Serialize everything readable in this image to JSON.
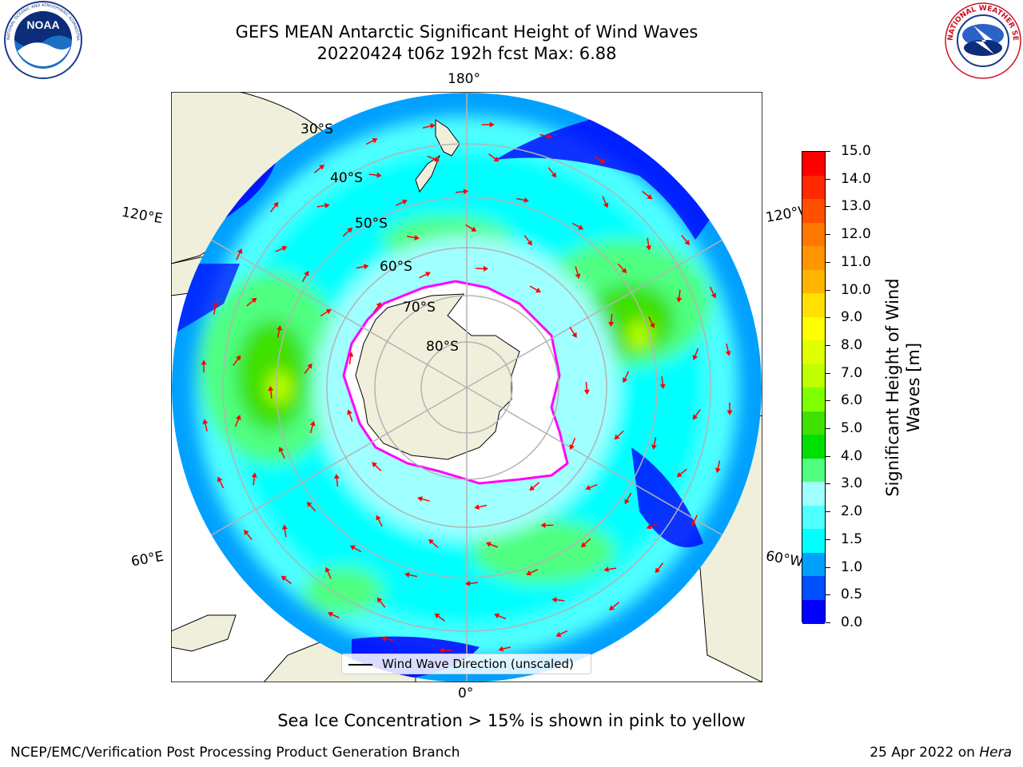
{
  "header": {
    "title_line1": "GEFS MEAN Antarctic Significant Height of Wind Waves",
    "title_line2": "20220424 t06z 192h fcst   Max: 6.88"
  },
  "logos": {
    "noaa": {
      "text": "NOAA",
      "ring_text": "NATIONAL OCEANIC AND ATMOSPHERIC ADMINISTRATION · U.S. DEPARTMENT OF COMMERCE"
    },
    "nws": {
      "ring_text": "NATIONAL WEATHER SERVICE"
    }
  },
  "map": {
    "projection": "south polar stereographic",
    "longitude_labels": [
      "180°",
      "120°E",
      "120°W",
      "60°E",
      "60°W",
      "0°"
    ],
    "latitude_labels": [
      "30°S",
      "40°S",
      "50°S",
      "60°S",
      "70°S",
      "80°S"
    ],
    "legend_label": "Wind Wave Direction (unscaled)",
    "colors": {
      "land": "#efefdb",
      "ice_shelf": "#ffffff",
      "sea_ice_edge": [
        "#ff00ff",
        "#ffa0c8",
        "#ffc830"
      ],
      "arrow": "#ff0000",
      "graticule": "#b4b4b4"
    }
  },
  "colorbar": {
    "title_line1": "Significant Height of Wind",
    "title_line2": "Waves [m]",
    "tick_labels": [
      "15.0",
      "14.0",
      "13.0",
      "12.0",
      "11.0",
      "10.0",
      "9.0",
      "8.0",
      "7.0",
      "6.0",
      "5.0",
      "4.0",
      "3.0",
      "2.0",
      "1.5",
      "1.0",
      "0.5",
      "0.0"
    ],
    "colors_top_to_bottom": [
      "#ff0000",
      "#ff2800",
      "#ff5000",
      "#ff7800",
      "#ff9600",
      "#ffb400",
      "#ffe000",
      "#ffff00",
      "#e0ff00",
      "#c0ff00",
      "#80ff00",
      "#40e000",
      "#00e000",
      "#50ff80",
      "#a0ffff",
      "#50ffff",
      "#00ffff",
      "#00a0ff",
      "#0050ff",
      "#0000ff"
    ]
  },
  "chart_data": {
    "type": "heatmap",
    "title": "GEFS MEAN Antarctic Significant Height of Wind Waves",
    "subtitle": "20220424 t06z 192h fcst   Max: 6.88",
    "variable": "Significant Height of Wind Waves [m]",
    "max_value": 6.88,
    "scale_levels": [
      0.0,
      0.5,
      1.0,
      1.5,
      2.0,
      3.0,
      4.0,
      5.0,
      6.0,
      7.0,
      8.0,
      9.0,
      10.0,
      11.0,
      12.0,
      13.0,
      14.0,
      15.0
    ],
    "series": [
      {
        "name": "Wind Wave Direction (unscaled)"
      }
    ]
  },
  "footer": {
    "ice_note": "Sea Ice Concentration > 15% is shown in pink to yellow",
    "left": "NCEP/EMC/Verification Post Processing Product Generation Branch",
    "date": "25 Apr 2022 on ",
    "host": "Hera"
  }
}
